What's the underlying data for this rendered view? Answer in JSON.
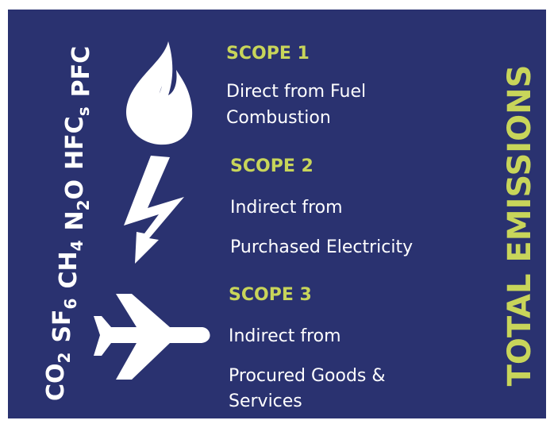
{
  "gases": [
    [
      "CO",
      "2"
    ],
    [
      "SF",
      "6"
    ],
    [
      "CH",
      "4"
    ],
    [
      "N",
      "2",
      "O"
    ],
    [
      "HFC",
      "s"
    ],
    [
      "PFC"
    ]
  ],
  "scopes": [
    {
      "title": "SCOPE 1",
      "lines": [
        "Direct from Fuel",
        "Combustion"
      ]
    },
    {
      "title": "SCOPE 2",
      "lines": [
        "Indirect from",
        "Purchased Electricity"
      ]
    },
    {
      "title": "SCOPE 3",
      "lines": [
        "Indirect from",
        "Procured Goods &",
        "Services"
      ]
    }
  ],
  "total": "TOTAL EMISSIONS"
}
